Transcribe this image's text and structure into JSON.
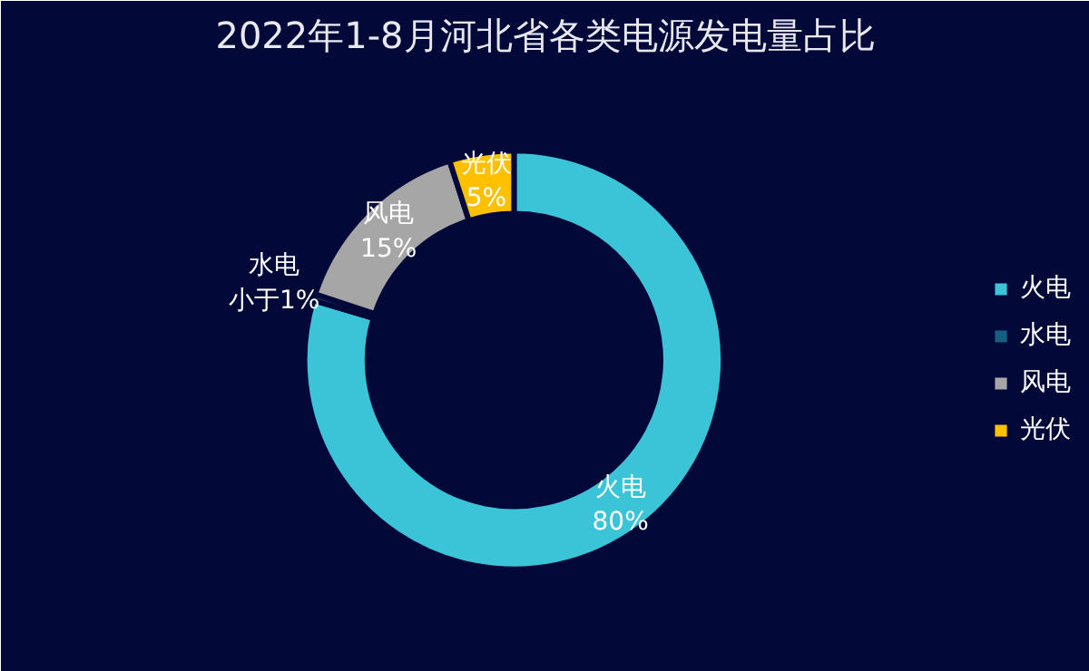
{
  "chart_data": {
    "type": "donut",
    "title": "2022年1-8月河北省各类电源发电量占比",
    "categories": [
      "火电",
      "水电",
      "风电",
      "光伏"
    ],
    "values": [
      80,
      0.5,
      15,
      5
    ],
    "value_labels": [
      "80%",
      "小于1%",
      "15%",
      "5%"
    ],
    "colors": [
      "#3bc4d8",
      "#155f82",
      "#a6a6a6",
      "#ffc000"
    ],
    "legend": "right"
  }
}
